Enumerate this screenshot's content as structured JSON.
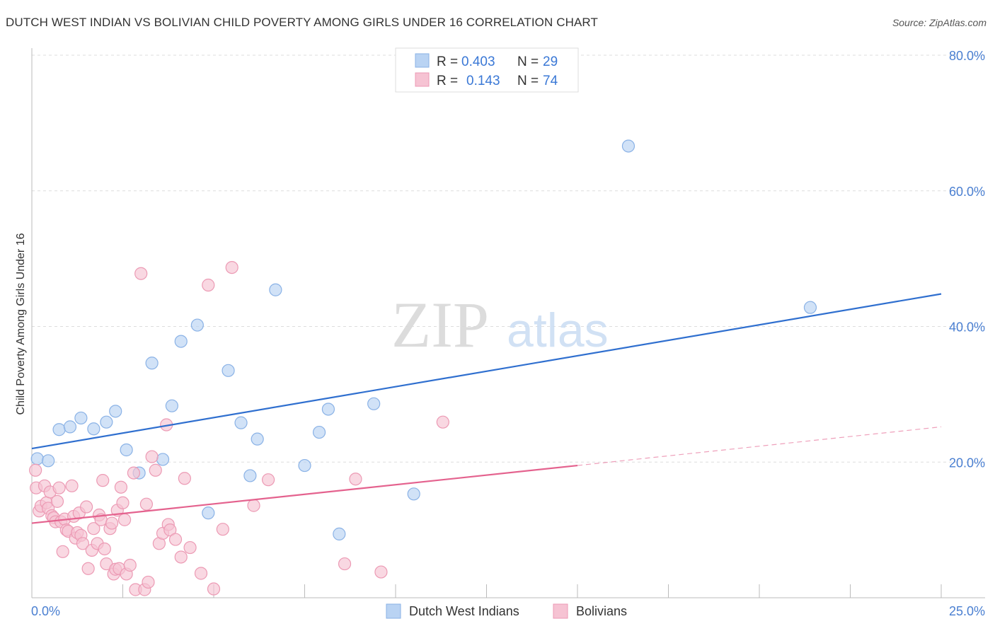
{
  "title": "DUTCH WEST INDIAN VS BOLIVIAN CHILD POVERTY AMONG GIRLS UNDER 16 CORRELATION CHART",
  "source": "Source: ZipAtlas.com",
  "watermark": {
    "zip": "ZIP",
    "atlas": "atlas"
  },
  "colors": {
    "blue_fill": "#b9d3f3",
    "blue_stroke": "#8ab2e6",
    "blue_line": "#2f6fcf",
    "pink_fill": "#f6c3d3",
    "pink_stroke": "#ec9ab4",
    "pink_line": "#e4628e",
    "grid": "#dddddd",
    "tick_text": "#4a7fd1"
  },
  "legend": {
    "rows": [
      {
        "r_label": "R =",
        "r_value": "0.403",
        "n_label": "N =",
        "n_value": "29",
        "color": "blue"
      },
      {
        "r_label": "R =",
        "r_value": "0.143",
        "n_label": "N =",
        "n_value": "74",
        "color": "pink"
      }
    ]
  },
  "chart_data": {
    "type": "scatter",
    "title": "DUTCH WEST INDIAN VS BOLIVIAN CHILD POVERTY AMONG GIRLS UNDER 16 CORRELATION CHART",
    "ylabel": "Child Poverty Among Girls Under 16",
    "xlabel": "",
    "xlim": [
      0,
      25
    ],
    "ylim": [
      0,
      80
    ],
    "x_tick_labels": [
      "0.0%",
      "25.0%"
    ],
    "y_tick_labels": [
      "20.0%",
      "40.0%",
      "60.0%",
      "80.0%"
    ],
    "y_ticks": [
      20,
      40,
      60,
      80
    ],
    "grid": true,
    "legend_position": "top-center",
    "series": [
      {
        "name": "Dutch West Indians",
        "color": "blue",
        "trend": {
          "x0": 0,
          "y0": 22.0,
          "x1": 25,
          "y1": 44.8
        },
        "points": [
          [
            0.15,
            20.5
          ],
          [
            0.45,
            20.2
          ],
          [
            0.75,
            24.8
          ],
          [
            1.05,
            25.2
          ],
          [
            1.35,
            26.5
          ],
          [
            1.7,
            24.9
          ],
          [
            2.05,
            25.9
          ],
          [
            2.3,
            27.5
          ],
          [
            2.6,
            21.8
          ],
          [
            2.95,
            18.4
          ],
          [
            3.3,
            34.6
          ],
          [
            3.6,
            20.4
          ],
          [
            3.85,
            28.3
          ],
          [
            4.1,
            37.8
          ],
          [
            4.55,
            40.2
          ],
          [
            4.85,
            12.5
          ],
          [
            5.4,
            33.5
          ],
          [
            5.75,
            25.8
          ],
          [
            6.0,
            18.0
          ],
          [
            6.2,
            23.4
          ],
          [
            6.7,
            45.4
          ],
          [
            7.5,
            19.5
          ],
          [
            7.9,
            24.4
          ],
          [
            8.15,
            27.8
          ],
          [
            8.45,
            9.4
          ],
          [
            9.4,
            28.6
          ],
          [
            10.5,
            15.3
          ],
          [
            16.4,
            66.6
          ],
          [
            21.4,
            42.8
          ]
        ]
      },
      {
        "name": "Bolivians",
        "color": "pink",
        "trend": {
          "x0": 0,
          "y0": 11.0,
          "x1": 15,
          "y1": 19.5,
          "dash_x1": 25,
          "dash_y1": 25.2
        },
        "points": [
          [
            0.1,
            18.8
          ],
          [
            0.12,
            16.2
          ],
          [
            0.2,
            12.8
          ],
          [
            0.25,
            13.5
          ],
          [
            0.35,
            16.5
          ],
          [
            0.4,
            14.0
          ],
          [
            0.45,
            13.2
          ],
          [
            0.5,
            15.6
          ],
          [
            0.55,
            12.1
          ],
          [
            0.6,
            11.8
          ],
          [
            0.65,
            11.2
          ],
          [
            0.7,
            14.2
          ],
          [
            0.75,
            16.2
          ],
          [
            0.8,
            11.2
          ],
          [
            0.85,
            6.8
          ],
          [
            0.9,
            11.6
          ],
          [
            0.95,
            10.0
          ],
          [
            1.0,
            9.8
          ],
          [
            1.1,
            16.5
          ],
          [
            1.15,
            12.0
          ],
          [
            1.2,
            8.8
          ],
          [
            1.25,
            9.6
          ],
          [
            1.3,
            12.5
          ],
          [
            1.35,
            9.2
          ],
          [
            1.4,
            8.0
          ],
          [
            1.5,
            13.4
          ],
          [
            1.55,
            4.3
          ],
          [
            1.65,
            7.0
          ],
          [
            1.7,
            10.2
          ],
          [
            1.8,
            8.0
          ],
          [
            1.85,
            12.2
          ],
          [
            1.9,
            11.5
          ],
          [
            1.95,
            17.3
          ],
          [
            2.0,
            7.2
          ],
          [
            2.05,
            5.0
          ],
          [
            2.15,
            10.2
          ],
          [
            2.2,
            11.0
          ],
          [
            2.25,
            3.5
          ],
          [
            2.3,
            4.2
          ],
          [
            2.35,
            12.9
          ],
          [
            2.4,
            4.3
          ],
          [
            2.45,
            16.3
          ],
          [
            2.5,
            14.0
          ],
          [
            2.55,
            11.5
          ],
          [
            2.6,
            3.5
          ],
          [
            2.7,
            4.8
          ],
          [
            2.8,
            18.4
          ],
          [
            2.85,
            1.2
          ],
          [
            3.0,
            47.8
          ],
          [
            3.1,
            1.2
          ],
          [
            3.15,
            13.8
          ],
          [
            3.2,
            2.3
          ],
          [
            3.3,
            20.8
          ],
          [
            3.4,
            18.8
          ],
          [
            3.5,
            8.0
          ],
          [
            3.6,
            9.5
          ],
          [
            3.7,
            25.5
          ],
          [
            3.75,
            10.8
          ],
          [
            3.8,
            10.0
          ],
          [
            3.95,
            8.6
          ],
          [
            4.1,
            6.0
          ],
          [
            4.2,
            17.6
          ],
          [
            4.35,
            7.4
          ],
          [
            4.65,
            3.6
          ],
          [
            4.85,
            46.1
          ],
          [
            5.0,
            1.3
          ],
          [
            5.25,
            10.1
          ],
          [
            5.5,
            48.7
          ],
          [
            6.1,
            13.6
          ],
          [
            6.5,
            17.4
          ],
          [
            8.6,
            5.0
          ],
          [
            8.9,
            17.5
          ],
          [
            9.6,
            3.8
          ],
          [
            11.3,
            25.9
          ]
        ]
      }
    ]
  },
  "bottom_legend": [
    {
      "label": "Dutch West Indians",
      "color": "blue"
    },
    {
      "label": "Bolivians",
      "color": "pink"
    }
  ]
}
